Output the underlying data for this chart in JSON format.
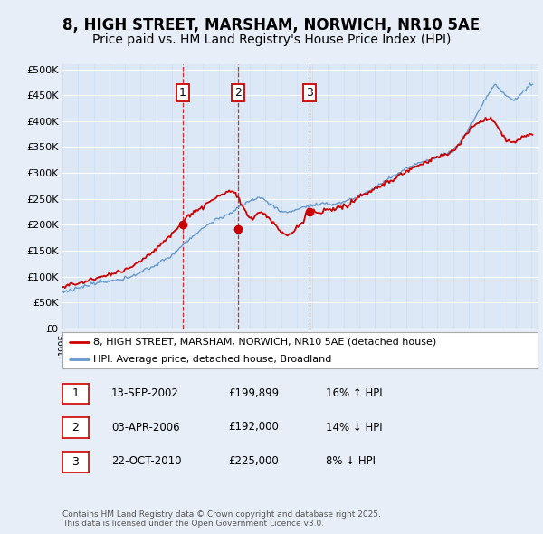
{
  "title": "8, HIGH STREET, MARSHAM, NORWICH, NR10 5AE",
  "subtitle": "Price paid vs. HM Land Registry's House Price Index (HPI)",
  "title_fontsize": 12,
  "subtitle_fontsize": 10,
  "background_color": "#e8eef8",
  "plot_bg_color": "#dce8f5",
  "ylabel_ticks": [
    "£0",
    "£50K",
    "£100K",
    "£150K",
    "£200K",
    "£250K",
    "£300K",
    "£350K",
    "£400K",
    "£450K",
    "£500K"
  ],
  "ytick_values": [
    0,
    50000,
    100000,
    150000,
    200000,
    250000,
    300000,
    350000,
    400000,
    450000,
    500000
  ],
  "ylim": [
    0,
    510000
  ],
  "sale_dates": [
    "2002-09-13",
    "2006-04-03",
    "2010-10-22"
  ],
  "sale_prices": [
    199899,
    192000,
    225000
  ],
  "sale_labels": [
    "1",
    "2",
    "3"
  ],
  "sale_vline_colors": [
    "#cc0000",
    "#cc0000",
    "#888888"
  ],
  "sale_vline_styles": [
    "--",
    "--",
    "--"
  ],
  "legend_line1": "8, HIGH STREET, MARSHAM, NORWICH, NR10 5AE (detached house)",
  "legend_line2": "HPI: Average price, detached house, Broadland",
  "annotation_rows": [
    {
      "label": "1",
      "date": "13-SEP-2002",
      "price": "£199,899",
      "hpi": "16% ↑ HPI"
    },
    {
      "label": "2",
      "date": "03-APR-2006",
      "price": "£192,000",
      "hpi": "14% ↓ HPI"
    },
    {
      "label": "3",
      "date": "22-OCT-2010",
      "price": "£225,000",
      "hpi": "8% ↓ HPI"
    }
  ],
  "footer": "Contains HM Land Registry data © Crown copyright and database right 2025.\nThis data is licensed under the Open Government Licence v3.0.",
  "red_color": "#cc0000",
  "blue_color": "#6699cc",
  "annotation_box_color": "#cc0000",
  "grid_color": "#ffffff",
  "grid_color_x": "#cccccc"
}
